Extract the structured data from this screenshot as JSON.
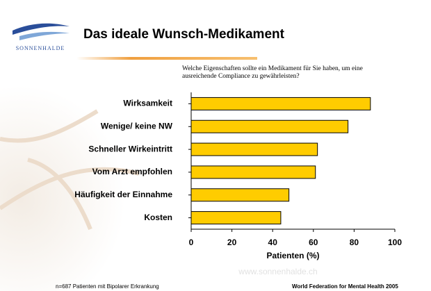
{
  "logo": "SONNENHALDE",
  "title": "Das ideale Wunsch-Medikament",
  "subtitle": "Welche Eigenschaften sollte ein Medikament für Sie haben, um eine ausreichende Compliance zu gewährleisten?",
  "watermark": "www.sonnenhalde.ch",
  "footer": {
    "left": "n=687 Patienten mit Bipolarer Erkrankung",
    "right": "World Federation for Mental Health 2005"
  },
  "chart_data": {
    "type": "bar",
    "orientation": "horizontal",
    "categories": [
      "Wirksamkeit",
      "Wenige/ keine NW",
      "Schneller Wirkeintritt",
      "Vom Arzt empfohlen",
      "Häufigkeit der Einnahme",
      "Kosten"
    ],
    "values": [
      88,
      77,
      62,
      61,
      48,
      44
    ],
    "color": "#ffcc00",
    "xlabel": "Patienten (%)",
    "xlim": [
      0,
      100
    ],
    "xticks": [
      0,
      20,
      40,
      60,
      80,
      100
    ]
  }
}
